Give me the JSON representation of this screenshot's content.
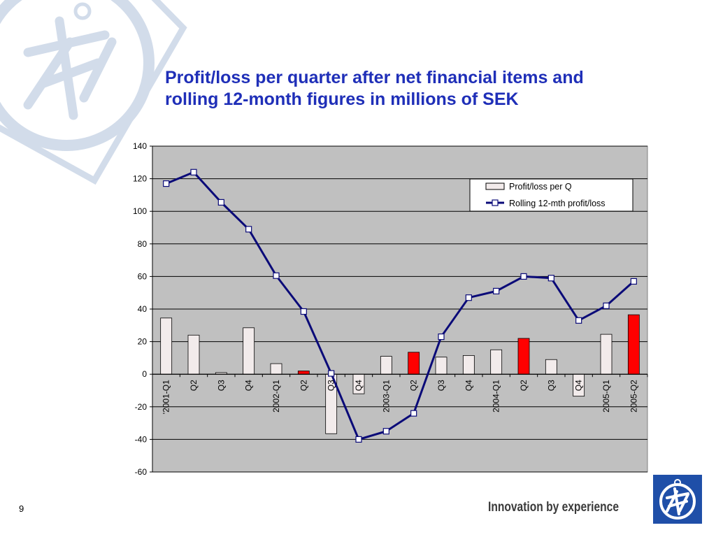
{
  "slide": {
    "title_line1": "Profit/loss per quarter after net financial items and",
    "title_line2": "rolling 12-month figures in millions of SEK",
    "page_number": "9",
    "tagline": "Innovation by experience",
    "brand_color": "#1f2fb8",
    "logo_color": "#1f4fa8",
    "watermark_color": "#d2dcea"
  },
  "chart_data": {
    "type": "bar",
    "categories": [
      "'2001-Q1",
      "Q2",
      "Q3",
      "Q4",
      "2002-Q1",
      "Q2",
      "Q3",
      "Q4",
      "2003-Q1",
      "Q2",
      "Q3",
      "Q4",
      "2004-Q1",
      "Q2",
      "Q3",
      "Q4",
      "2005-Q1",
      "2005-Q2"
    ],
    "series": [
      {
        "name": "Profit/loss per Q",
        "type": "bar",
        "values": [
          34.5,
          24,
          1,
          28.5,
          6.5,
          2,
          -36.5,
          -12,
          11,
          13.5,
          10.5,
          11.5,
          15,
          22,
          9,
          -13.5,
          24.5,
          36.5
        ],
        "color": "#f2ebeb",
        "highlight_color": "#ff0000",
        "highlighted": [
          false,
          false,
          false,
          false,
          false,
          true,
          false,
          false,
          false,
          true,
          false,
          false,
          false,
          true,
          false,
          false,
          false,
          true
        ]
      },
      {
        "name": "Rolling 12-mth profit/loss",
        "type": "line",
        "values": [
          117,
          124,
          105.5,
          89,
          60.5,
          38.5,
          0.5,
          -40,
          -35,
          -24,
          23,
          47,
          51,
          60,
          59,
          33,
          42,
          57
        ],
        "color": "#0a0a78",
        "marker": "square"
      }
    ],
    "ylim": [
      -60,
      140
    ],
    "yticks": [
      -60,
      -40,
      -20,
      0,
      20,
      40,
      60,
      80,
      100,
      120,
      140
    ],
    "grid": true,
    "plot_background": "#c0c0c0",
    "legend_position": "top-right",
    "xlabel": "",
    "ylabel": ""
  }
}
